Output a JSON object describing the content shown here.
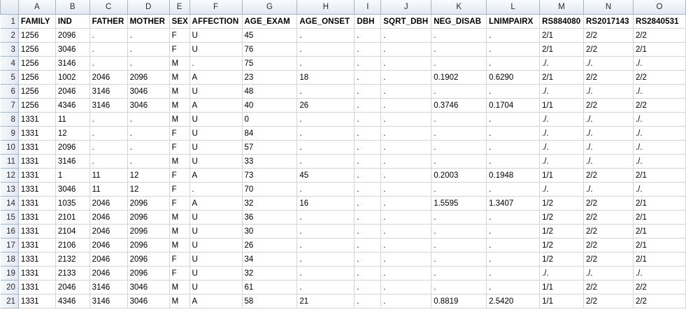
{
  "columns": [
    "A",
    "B",
    "C",
    "D",
    "E",
    "F",
    "G",
    "H",
    "I",
    "J",
    "K",
    "L",
    "M",
    "N",
    "O"
  ],
  "rows": [
    {
      "num": "1",
      "cells": [
        "FAMILY",
        "IND",
        "FATHER",
        "MOTHER",
        "SEX",
        "AFFECTION",
        "AGE_EXAM",
        "AGE_ONSET",
        "DBH",
        "SQRT_DBH",
        "NEG_DISAB",
        "LNIMPAIRX",
        "RS884080",
        "RS2017143",
        "RS2840531"
      ]
    },
    {
      "num": "2",
      "cells": [
        "1256",
        "2096",
        ".",
        ".",
        "F",
        "U",
        "45",
        ".",
        ".",
        ".",
        ".",
        ".",
        "2/1",
        "2/2",
        "2/2"
      ]
    },
    {
      "num": "3",
      "cells": [
        "1256",
        "3046",
        ".",
        ".",
        "F",
        "U",
        "76",
        ".",
        ".",
        ".",
        ".",
        ".",
        "2/1",
        "2/2",
        "2/1"
      ]
    },
    {
      "num": "4",
      "cells": [
        "1256",
        "3146",
        ".",
        ".",
        "M",
        ".",
        "75",
        ".",
        ".",
        ".",
        ".",
        ".",
        "./.",
        "./.",
        "./."
      ]
    },
    {
      "num": "5",
      "cells": [
        "1256",
        "1002",
        "2046",
        "2096",
        "M",
        "A",
        "23",
        "18",
        ".",
        ".",
        "0.1902",
        "0.6290",
        "2/1",
        "2/2",
        "2/2"
      ]
    },
    {
      "num": "6",
      "cells": [
        "1256",
        "2046",
        "3146",
        "3046",
        "M",
        "U",
        "48",
        ".",
        ".",
        ".",
        ".",
        ".",
        "./.",
        "./.",
        "./."
      ]
    },
    {
      "num": "7",
      "cells": [
        "1256",
        "4346",
        "3146",
        "3046",
        "M",
        "A",
        "40",
        "26",
        ".",
        ".",
        "0.3746",
        "0.1704",
        "1/1",
        "2/2",
        "2/2"
      ]
    },
    {
      "num": "8",
      "cells": [
        "1331",
        "11",
        ".",
        ".",
        "M",
        "U",
        "0",
        ".",
        ".",
        ".",
        ".",
        ".",
        "./.",
        "./.",
        "./."
      ]
    },
    {
      "num": "9",
      "cells": [
        "1331",
        "12",
        ".",
        ".",
        "F",
        "U",
        "84",
        ".",
        ".",
        ".",
        ".",
        ".",
        "./.",
        "./.",
        "./."
      ]
    },
    {
      "num": "10",
      "cells": [
        "1331",
        "2096",
        ".",
        ".",
        "F",
        "U",
        "57",
        ".",
        ".",
        ".",
        ".",
        ".",
        "./.",
        "./.",
        "./."
      ]
    },
    {
      "num": "11",
      "cells": [
        "1331",
        "3146",
        ".",
        ".",
        "M",
        "U",
        "33",
        ".",
        ".",
        ".",
        ".",
        ".",
        "./.",
        "./.",
        "./."
      ]
    },
    {
      "num": "12",
      "cells": [
        "1331",
        "1",
        "11",
        "12",
        "F",
        "A",
        "73",
        "45",
        ".",
        ".",
        "0.2003",
        "0.1948",
        "1/1",
        "2/2",
        "2/1"
      ]
    },
    {
      "num": "13",
      "cells": [
        "1331",
        "3046",
        "11",
        "12",
        "F",
        ".",
        "70",
        ".",
        ".",
        ".",
        ".",
        ".",
        "./.",
        "./.",
        "./."
      ]
    },
    {
      "num": "14",
      "cells": [
        "1331",
        "1035",
        "2046",
        "2096",
        "F",
        "A",
        "32",
        "16",
        ".",
        ".",
        "1.5595",
        "1.3407",
        "1/2",
        "2/2",
        "2/1"
      ]
    },
    {
      "num": "15",
      "cells": [
        "1331",
        "2101",
        "2046",
        "2096",
        "M",
        "U",
        "36",
        ".",
        ".",
        ".",
        ".",
        ".",
        "1/2",
        "2/2",
        "2/1"
      ]
    },
    {
      "num": "16",
      "cells": [
        "1331",
        "2104",
        "2046",
        "2096",
        "M",
        "U",
        "30",
        ".",
        ".",
        ".",
        ".",
        ".",
        "1/2",
        "2/2",
        "2/1"
      ]
    },
    {
      "num": "17",
      "cells": [
        "1331",
        "2106",
        "2046",
        "2096",
        "M",
        "U",
        "26",
        ".",
        ".",
        ".",
        ".",
        ".",
        "1/2",
        "2/2",
        "2/1"
      ]
    },
    {
      "num": "18",
      "cells": [
        "1331",
        "2132",
        "2046",
        "2096",
        "F",
        "U",
        "34",
        ".",
        ".",
        ".",
        ".",
        ".",
        "1/2",
        "2/2",
        "2/1"
      ]
    },
    {
      "num": "19",
      "cells": [
        "1331",
        "2133",
        "2046",
        "2096",
        "F",
        "U",
        "32",
        ".",
        ".",
        ".",
        ".",
        ".",
        "./.",
        "./.",
        "./."
      ]
    },
    {
      "num": "20",
      "cells": [
        "1331",
        "2046",
        "3146",
        "3046",
        "M",
        "U",
        "61",
        ".",
        ".",
        ".",
        ".",
        ".",
        "1/1",
        "2/2",
        "2/2"
      ]
    },
    {
      "num": "21",
      "cells": [
        "1331",
        "4346",
        "3146",
        "3046",
        "M",
        "A",
        "58",
        "21",
        ".",
        ".",
        "0.8819",
        "2.5420",
        "1/1",
        "2/2",
        "2/2"
      ]
    }
  ]
}
